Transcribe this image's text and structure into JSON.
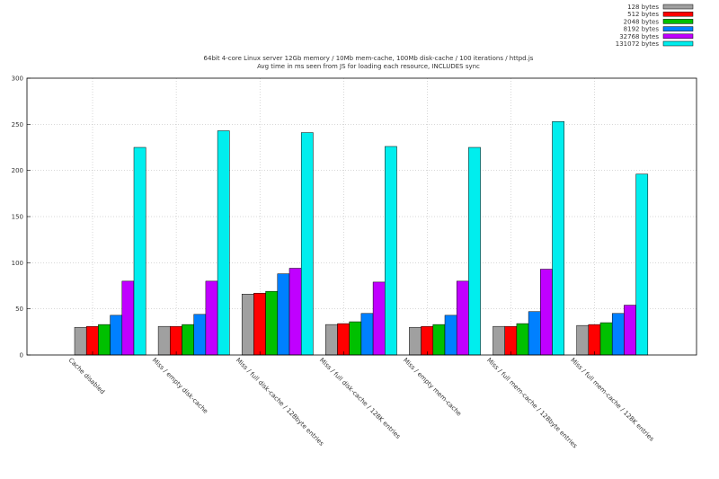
{
  "chart_data": {
    "type": "bar",
    "title_lines": [
      "64bit 4-core Linux server 12Gb memory / 10Mb mem-cache, 100Mb disk-cache / 100 iterations / httpd.js",
      "Avg time in ms seen from JS for loading each resource, INCLUDES sync"
    ],
    "xlabel": "",
    "ylabel": "",
    "ylim": [
      0,
      300
    ],
    "yticks": [
      0,
      50,
      100,
      150,
      200,
      250,
      300
    ],
    "grid": true,
    "legend_position": "top-right",
    "categories": [
      "Cache disabled",
      "Miss / empty disk-cache",
      "Miss / full disk-cache / 128byte entries",
      "Miss / full disk-cache / 128K entries",
      "Miss / empty mem-cache",
      "Miss / full mem-cache / 128byte entries",
      "Miss / full mem-cache / 128K entries"
    ],
    "series": [
      {
        "name": "128 bytes",
        "color": "#a0a0a0",
        "values": [
          30,
          31,
          66,
          33,
          30,
          31,
          32
        ]
      },
      {
        "name": "512 bytes",
        "color": "#ff0000",
        "values": [
          31,
          31,
          67,
          34,
          31,
          31,
          33
        ]
      },
      {
        "name": "2048 bytes",
        "color": "#00c000",
        "values": [
          33,
          33,
          69,
          36,
          33,
          34,
          35
        ]
      },
      {
        "name": "8192 bytes",
        "color": "#0080ff",
        "values": [
          43,
          44,
          88,
          45,
          43,
          47,
          45
        ]
      },
      {
        "name": "32768 bytes",
        "color": "#c000ff",
        "values": [
          80,
          80,
          94,
          79,
          80,
          93,
          54
        ]
      },
      {
        "name": "131072 bytes",
        "color": "#00eeee",
        "values": [
          225,
          243,
          241,
          226,
          225,
          253,
          196
        ]
      }
    ]
  }
}
